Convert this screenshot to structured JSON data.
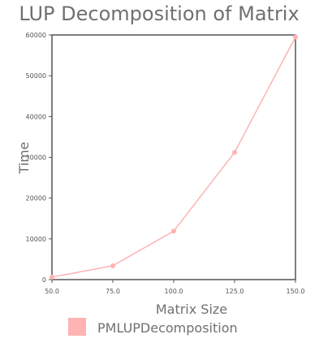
{
  "chart_data": {
    "type": "line",
    "title": "LUP Decomposition of Matrix",
    "xlabel": "Matrix Size",
    "ylabel": "Time",
    "x": [
      50.0,
      75.0,
      100.0,
      125.0,
      150.0
    ],
    "x_tick_labels": [
      "50.0",
      "75.0",
      "100.0",
      "125.0",
      "150.0"
    ],
    "y_tick_labels": [
      "0",
      "10000",
      "20000",
      "30000",
      "40000",
      "50000",
      "60000"
    ],
    "xlim": [
      50,
      150
    ],
    "ylim": [
      0,
      60000
    ],
    "series": [
      {
        "name": "PMLUPDecomposition",
        "values": [
          600,
          3400,
          11900,
          31200,
          59500
        ],
        "color": "#ffb3b3"
      }
    ],
    "grid": false,
    "legend_position": "bottom-left"
  },
  "colors": {
    "axis": "#555555",
    "text": "#707070",
    "series": "#ffb3b3"
  }
}
